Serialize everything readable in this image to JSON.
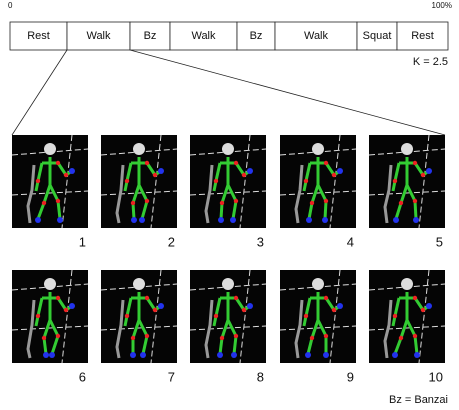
{
  "timeline": {
    "start_label": "0",
    "end_label": "100%",
    "segments": [
      "Rest",
      "Walk",
      "Bz",
      "Walk",
      "Bz",
      "Walk",
      "Squat",
      "Rest"
    ]
  },
  "parameter": "K = 2.5",
  "frames": [
    "1",
    "2",
    "3",
    "4",
    "5",
    "6",
    "7",
    "8",
    "9",
    "10"
  ],
  "legend": "Bz = Banzai"
}
